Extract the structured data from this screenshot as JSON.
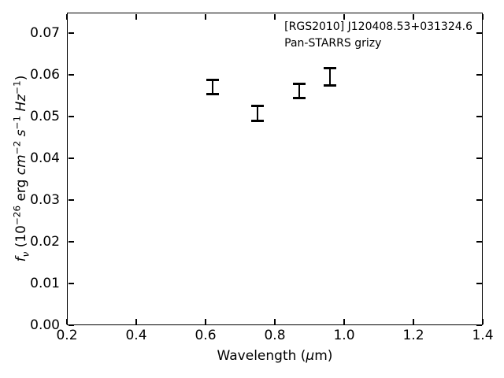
{
  "colors": {
    "foreground": "#000000",
    "background": "#ffffff"
  },
  "annotation": {
    "line1": "[RGS2010] J120408.53+031324.6",
    "line2": "Pan-STARRS grizy"
  },
  "labels": {
    "xlabel_parts": {
      "pre": "Wavelength (",
      "mu": "μ",
      "post": "m)"
    },
    "ylabel_parts": {
      "f": "f",
      "nu": "ν",
      "p1": " (10",
      "e1": "−26",
      "p2": " erg ",
      "cm": "cm",
      "e2": "−2",
      "sp1": " ",
      "s": "s",
      "e3": "−1",
      "sp2": " ",
      "hz": "Hz",
      "e4": "−1",
      "p3": ")"
    }
  },
  "chart_data": {
    "type": "scatter",
    "error_bars": true,
    "title": "",
    "annotation_lines": [
      "[RGS2010] J120408.53+031324.6",
      "Pan-STARRS grizy"
    ],
    "xlabel": "Wavelength (μm)",
    "ylabel": "fν (10⁻²⁶ erg cm⁻² s⁻¹ Hz⁻¹)",
    "xlim": [
      0.2,
      1.4
    ],
    "ylim": [
      0.0,
      0.075
    ],
    "grid": false,
    "legend_position": "none",
    "tick_direction": "in",
    "ticks_all_sides": true,
    "xtick_values": [
      0.2,
      0.4,
      0.6,
      0.8,
      1.0,
      1.2,
      1.4
    ],
    "xtick_labels": [
      "0.2",
      "0.4",
      "0.6",
      "0.8",
      "1.0",
      "1.2",
      "1.4"
    ],
    "ytick_values": [
      0.0,
      0.01,
      0.02,
      0.03,
      0.04,
      0.05,
      0.06,
      0.07
    ],
    "ytick_labels": [
      "0.00",
      "0.01",
      "0.02",
      "0.03",
      "0.04",
      "0.05",
      "0.06",
      "0.07"
    ],
    "series": [
      {
        "name": "Pan-STARRS grizy photometry",
        "color": "#000000",
        "marker": "errorbar",
        "points": [
          {
            "x": 0.62,
            "y": 0.0571,
            "yerr": 0.0017
          },
          {
            "x": 0.75,
            "y": 0.0509,
            "yerr": 0.0018
          },
          {
            "x": 0.87,
            "y": 0.0562,
            "yerr": 0.0017
          },
          {
            "x": 0.96,
            "y": 0.0596,
            "yerr": 0.002
          }
        ]
      }
    ]
  }
}
